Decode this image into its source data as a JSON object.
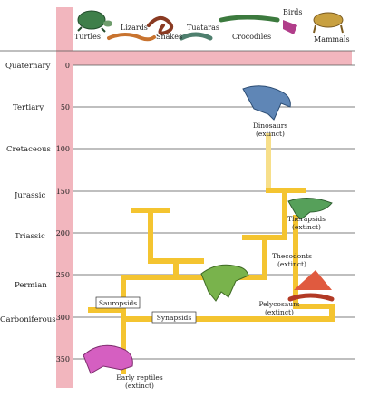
{
  "taxa": {
    "turtles": "Turtles",
    "lizards": "Lizards",
    "snakes": "Snakes",
    "tuataras": "Tuataras",
    "crocodiles": "Crocodiles",
    "birds": "Birds",
    "mammals": "Mammals"
  },
  "periods": [
    "Quaternary",
    "Tertiary",
    "Cretaceous",
    "Jurassic",
    "Triassic",
    "Permian",
    "Carboniferous"
  ],
  "ticks": [
    "0",
    "50",
    "100",
    "150",
    "200",
    "250",
    "300",
    "350"
  ],
  "labels": {
    "sauropsids": "Sauropsids",
    "synapsids": "Synapsids",
    "dinosaurs": "Dinosaurs",
    "therapsids": "Therapsids",
    "thecodonts": "Thecodonts",
    "pelycosaurs": "Pelycosaurs",
    "early_reptiles": "Early reptiles",
    "extinct": "(extinct)"
  },
  "colors": {
    "band": "#f2b6be",
    "branch": "#f7e7a0",
    "branch_deep": "#f4c430",
    "gridline": "#555555"
  }
}
